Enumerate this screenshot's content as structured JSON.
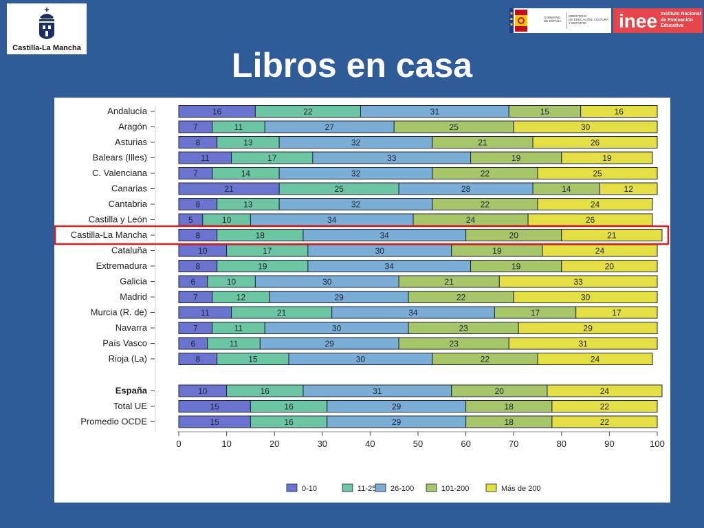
{
  "header": {
    "title": "Libros en casa",
    "logo_left_caption": "Castilla-La Mancha",
    "gov_logo_lines": [
      "GOBIERNO",
      "DE ESPAÑA",
      "MINISTERIO",
      "DE EDUCACIÓN, CULTURA",
      "Y DEPORTE"
    ],
    "inee_brand": "inee",
    "inee_lines": [
      "Instituto Nacional",
      "de Evaluación",
      "Educativa"
    ]
  },
  "colors": {
    "background": "#2f5b98",
    "highlight": "#e01b1b",
    "series": [
      "#6a74cf",
      "#6cc6a4",
      "#7aaed6",
      "#a7c66a",
      "#e3df45"
    ]
  },
  "chart_data": {
    "type": "bar",
    "orientation": "horizontal",
    "stacked": true,
    "title": "",
    "xlabel": "",
    "ylabel": "",
    "xlim": [
      0,
      100
    ],
    "xticks": [
      0,
      10,
      20,
      30,
      40,
      50,
      60,
      70,
      80,
      90,
      100
    ],
    "legend_position": "bottom",
    "highlighted_category": "Castilla-La Mancha",
    "categories": [
      "Andalucía",
      "Aragón",
      "Asturias",
      "Balears (Illes)",
      "C. Valenciana",
      "Canarias",
      "Cantabria",
      "Castilla y León",
      "Castilla-La Mancha",
      "Cataluña",
      "Extremadura",
      "Galicia",
      "Madrid",
      "Murcia (R. de)",
      "Navarra",
      "País Vasco",
      "Rioja (La)",
      "España",
      "Total UE",
      "Promedio OCDE"
    ],
    "series": [
      {
        "name": "0-10",
        "values": [
          16,
          7,
          8,
          11,
          7,
          21,
          8,
          5,
          8,
          10,
          8,
          6,
          7,
          11,
          7,
          6,
          8,
          10,
          15,
          15
        ]
      },
      {
        "name": "11-25",
        "values": [
          22,
          11,
          13,
          17,
          14,
          25,
          13,
          10,
          18,
          17,
          19,
          10,
          12,
          21,
          11,
          11,
          15,
          16,
          16,
          16
        ]
      },
      {
        "name": "26-100",
        "values": [
          31,
          27,
          32,
          33,
          32,
          28,
          32,
          34,
          34,
          30,
          34,
          30,
          29,
          34,
          30,
          29,
          30,
          31,
          29,
          29
        ]
      },
      {
        "name": "101-200",
        "values": [
          15,
          25,
          21,
          19,
          22,
          14,
          22,
          24,
          20,
          19,
          19,
          21,
          22,
          17,
          23,
          23,
          22,
          20,
          18,
          18
        ]
      },
      {
        "name": "Más de 200",
        "values": [
          16,
          30,
          26,
          19,
          25,
          12,
          24,
          26,
          21,
          24,
          20,
          33,
          30,
          17,
          29,
          31,
          24,
          24,
          22,
          22
        ]
      }
    ]
  }
}
